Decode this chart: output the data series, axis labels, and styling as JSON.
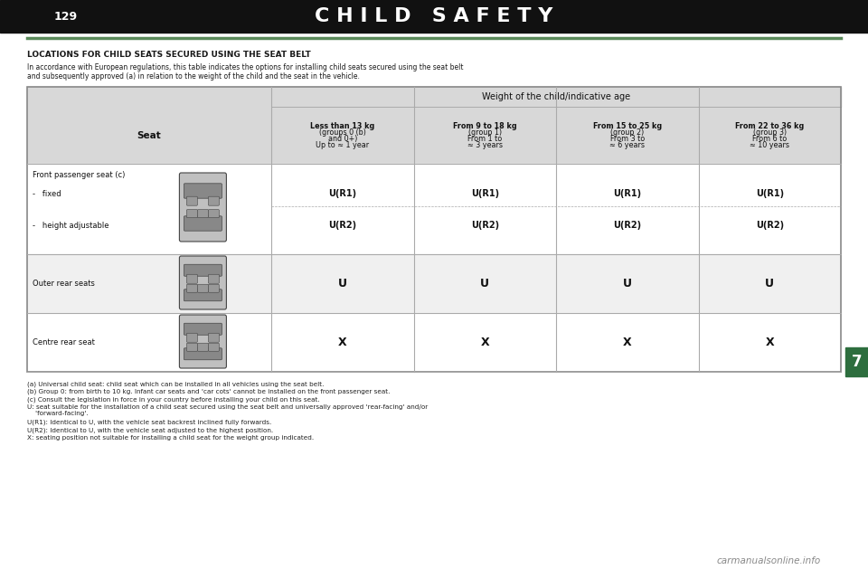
{
  "title": "C H I L D   S A F E T Y",
  "title_color": "#1a1a1a",
  "green_line_color": "#5a8a5a",
  "section_heading": "LOCATIONS FOR CHILD SEATS SECURED USING THE SEAT BELT",
  "intro_text": "In accordance with European regulations, this table indicates the options for installing child seats secured using the seat belt\nand subsequently approved (a) in relation to the weight of the child and the seat in the vehicle.",
  "table_bg_header": "#d8d8d8",
  "table_bg_row_alt": "#f0f0f0",
  "table_bg_row_normal": "#ffffff",
  "table_border_color": "#aaaaaa",
  "col_headers": [
    "Seat",
    "Less than 13 kg\n(groups 0 (b)\nand 0+)\nUp to ≈ 1 year",
    "From 9 to 18 kg\n(group 1)\nFrom 1 to\n≈ 3 years",
    "From 15 to 25 kg\n(group 2)\nFrom 3 to\n≈ 6 years",
    "From 22 to 36 kg\n(group 3)\nFrom 6 to\n≈ 10 years"
  ],
  "weight_header": "Weight of the child/indicative age",
  "rows": [
    {
      "seat": "Front passenger seat (c)",
      "subrows": [
        {
          "label": "-   fixed",
          "values": [
            "U(R1)",
            "U(R1)",
            "U(R1)",
            "U(R1)"
          ]
        },
        {
          "label": "-   height adjustable",
          "values": [
            "U(R2)",
            "U(R2)",
            "U(R2)",
            "U(R2)"
          ]
        }
      ],
      "has_image": true,
      "image_type": "front"
    },
    {
      "seat": "Outer rear seats",
      "subrows": [
        {
          "label": "",
          "values": [
            "U",
            "U",
            "U",
            "U"
          ]
        }
      ],
      "has_image": true,
      "image_type": "rear_outer"
    },
    {
      "seat": "Centre rear seat",
      "subrows": [
        {
          "label": "",
          "values": [
            "X",
            "X",
            "X",
            "X"
          ]
        }
      ],
      "has_image": true,
      "image_type": "rear_centre"
    }
  ],
  "footnotes": [
    "(a) Universal child seat: child seat which can be installed in all vehicles using the seat belt.",
    "(b) Group 0: from birth to 10 kg. Infant car seats and 'car cots' cannot be installed on the front passenger seat.",
    "(c) Consult the legislation in force in your country before installing your child on this seat.",
    "U: seat suitable for the installation of a child seat secured using the seat belt and universally approved 'rear-facing' and/or\n    'forward-facing'.",
    "U(R1): Identical to U, with the vehicle seat backrest inclined fully forwards.",
    "U(R2): Identical to U, with the vehicle seat adjusted to the highest position.",
    "X: seating position not suitable for installing a child seat for the weight group indicated."
  ],
  "page_number": "129",
  "tab_number": "7",
  "tab_color": "#2d6e3e",
  "bg_color": "#ffffff",
  "watermark": "carmanualsonline.info"
}
